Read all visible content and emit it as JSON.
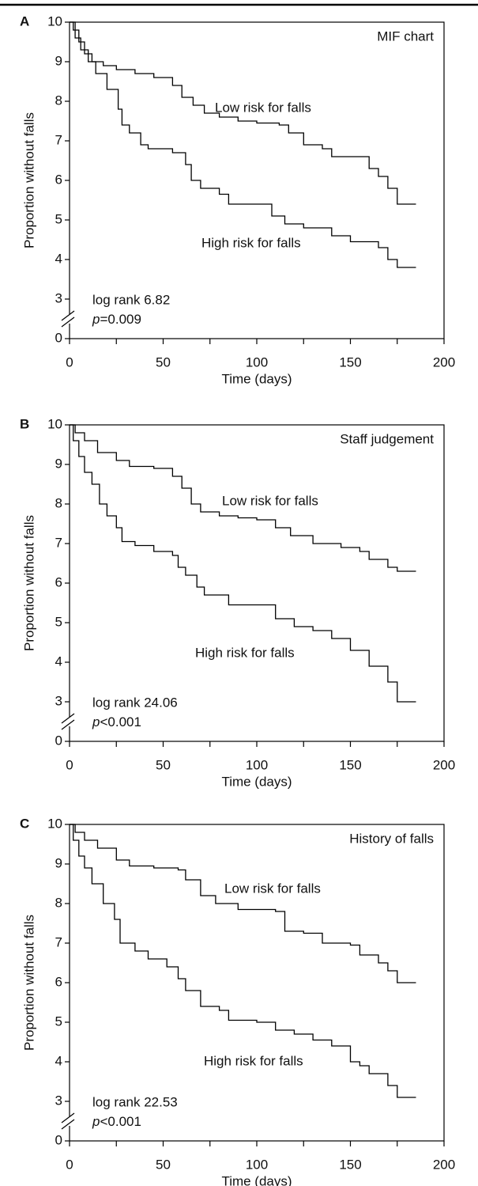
{
  "chart_data": [
    {
      "type": "line",
      "step": true,
      "panel_label": "A",
      "title": "MIF chart",
      "xlabel": "Time (days)",
      "ylabel": "Proportion without falls",
      "xlim": [
        0,
        200
      ],
      "xticks": [
        0,
        50,
        100,
        150,
        200
      ],
      "xminor_ticks": [
        25,
        75,
        125,
        175
      ],
      "ylim": [
        0,
        10
      ],
      "yticks": [
        0,
        3,
        4,
        5,
        6,
        7,
        8,
        9,
        10
      ],
      "y_break": [
        0,
        3
      ],
      "stat_label": "log rank 6.82",
      "p_symbol": "p",
      "p_value": "=0.009",
      "series": [
        {
          "name": "Low risk for falls",
          "color": "#000000",
          "x": [
            0,
            2,
            5,
            8,
            12,
            18,
            25,
            35,
            45,
            55,
            60,
            66,
            72,
            80,
            90,
            100,
            112,
            117,
            125,
            135,
            140,
            150,
            160,
            165,
            170,
            175,
            185
          ],
          "values": [
            10,
            9.8,
            9.5,
            9.2,
            9.0,
            8.9,
            8.8,
            8.7,
            8.6,
            8.4,
            8.1,
            7.9,
            7.7,
            7.6,
            7.5,
            7.45,
            7.4,
            7.2,
            6.9,
            6.8,
            6.6,
            6.6,
            6.3,
            6.1,
            5.8,
            5.4,
            5.4
          ]
        },
        {
          "name": "High risk for falls",
          "color": "#000000",
          "x": [
            0,
            3,
            6,
            10,
            14,
            20,
            26,
            28,
            32,
            38,
            42,
            55,
            62,
            65,
            70,
            80,
            85,
            100,
            108,
            115,
            125,
            140,
            150,
            165,
            170,
            175,
            185
          ],
          "values": [
            10,
            9.6,
            9.3,
            9.0,
            8.7,
            8.3,
            7.8,
            7.4,
            7.2,
            6.9,
            6.8,
            6.7,
            6.4,
            6.0,
            5.8,
            5.65,
            5.4,
            5.4,
            5.1,
            4.9,
            4.8,
            4.6,
            4.45,
            4.3,
            4.0,
            3.8,
            3.8
          ]
        }
      ]
    },
    {
      "type": "line",
      "step": true,
      "panel_label": "B",
      "title": "Staff judgement",
      "xlabel": "Time (days)",
      "ylabel": "Proportion without falls",
      "xlim": [
        0,
        200
      ],
      "xticks": [
        0,
        50,
        100,
        150,
        200
      ],
      "xminor_ticks": [
        25,
        75,
        125,
        175
      ],
      "ylim": [
        0,
        10
      ],
      "yticks": [
        0,
        3,
        4,
        5,
        6,
        7,
        8,
        9,
        10
      ],
      "y_break": [
        0,
        3
      ],
      "stat_label": "log rank 24.06",
      "p_symbol": "p",
      "p_value": "<0.001",
      "series": [
        {
          "name": "Low risk for falls",
          "color": "#000000",
          "x": [
            0,
            3,
            8,
            15,
            25,
            32,
            45,
            55,
            60,
            65,
            70,
            80,
            90,
            100,
            110,
            118,
            130,
            145,
            155,
            160,
            170,
            175,
            185
          ],
          "values": [
            10,
            9.8,
            9.6,
            9.3,
            9.1,
            8.95,
            8.9,
            8.7,
            8.4,
            8.0,
            7.8,
            7.7,
            7.65,
            7.6,
            7.4,
            7.2,
            7.0,
            6.9,
            6.8,
            6.6,
            6.4,
            6.3,
            6.3
          ]
        },
        {
          "name": "High risk for falls",
          "color": "#000000",
          "x": [
            0,
            2,
            5,
            8,
            12,
            16,
            20,
            25,
            28,
            35,
            45,
            55,
            58,
            62,
            68,
            72,
            85,
            100,
            110,
            120,
            130,
            140,
            150,
            160,
            170,
            175,
            185
          ],
          "values": [
            10,
            9.6,
            9.2,
            8.8,
            8.5,
            8.0,
            7.7,
            7.4,
            7.05,
            6.95,
            6.8,
            6.7,
            6.4,
            6.2,
            5.9,
            5.7,
            5.45,
            5.45,
            5.1,
            4.9,
            4.8,
            4.6,
            4.3,
            3.9,
            3.5,
            3.0,
            3.0
          ]
        }
      ]
    },
    {
      "type": "line",
      "step": true,
      "panel_label": "C",
      "title": "History of falls",
      "xlabel": "Time (days)",
      "ylabel": "Proportion without falls",
      "xlim": [
        0,
        200
      ],
      "xticks": [
        0,
        50,
        100,
        150,
        200
      ],
      "xminor_ticks": [
        25,
        75,
        125,
        175
      ],
      "ylim": [
        0,
        10
      ],
      "yticks": [
        0,
        3,
        4,
        5,
        6,
        7,
        8,
        9,
        10
      ],
      "y_break": [
        0,
        3
      ],
      "stat_label": "log rank 22.53",
      "p_symbol": "p",
      "p_value": "<0.001",
      "series": [
        {
          "name": "Low risk for falls",
          "color": "#000000",
          "x": [
            0,
            3,
            8,
            15,
            25,
            32,
            45,
            58,
            62,
            70,
            78,
            90,
            110,
            115,
            125,
            135,
            150,
            155,
            165,
            170,
            175,
            185
          ],
          "values": [
            10,
            9.8,
            9.6,
            9.4,
            9.1,
            8.95,
            8.9,
            8.85,
            8.6,
            8.2,
            8.0,
            7.85,
            7.8,
            7.3,
            7.25,
            7.0,
            6.95,
            6.7,
            6.5,
            6.3,
            6.0,
            6.0
          ]
        },
        {
          "name": "High risk for falls",
          "color": "#000000",
          "x": [
            0,
            2,
            5,
            8,
            12,
            18,
            24,
            27,
            35,
            42,
            52,
            58,
            62,
            70,
            80,
            85,
            100,
            110,
            120,
            130,
            140,
            150,
            155,
            160,
            170,
            175,
            185
          ],
          "values": [
            10,
            9.6,
            9.2,
            8.9,
            8.5,
            8.0,
            7.6,
            7.0,
            6.8,
            6.6,
            6.4,
            6.1,
            5.8,
            5.4,
            5.3,
            5.05,
            5.0,
            4.8,
            4.7,
            4.55,
            4.4,
            4.0,
            3.9,
            3.7,
            3.4,
            3.1,
            3.1
          ]
        }
      ]
    }
  ]
}
